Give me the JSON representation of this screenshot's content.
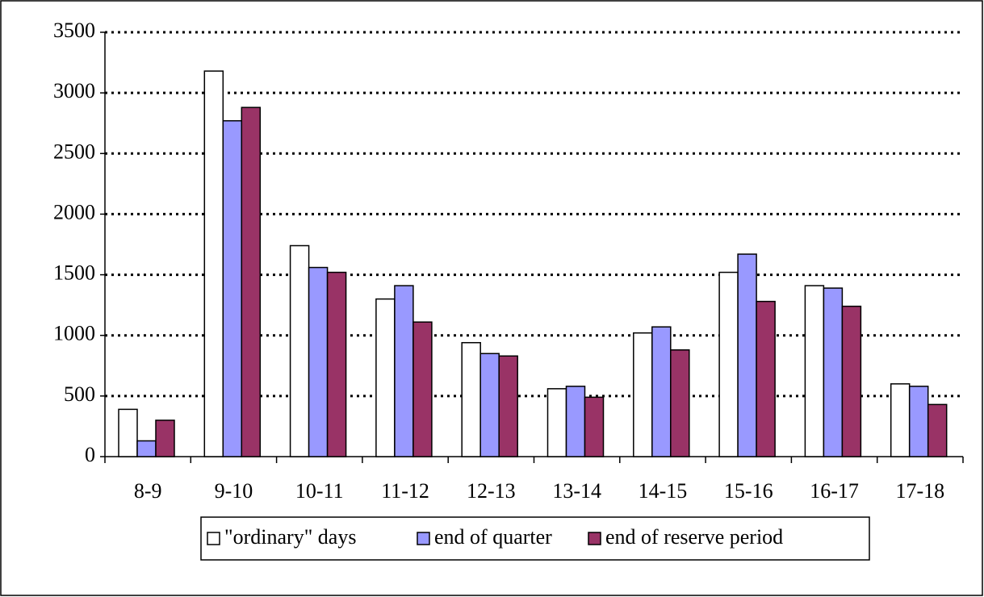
{
  "chart_data": {
    "type": "bar",
    "categories": [
      "8-9",
      "9-10",
      "10-11",
      "11-12",
      "12-13",
      "13-14",
      "14-15",
      "15-16",
      "16-17",
      "17-18"
    ],
    "series": [
      {
        "name": "\"ordinary\" days",
        "color": "#ffffff",
        "values": [
          390,
          3180,
          1740,
          1300,
          940,
          560,
          1020,
          1520,
          1410,
          600
        ]
      },
      {
        "name": "end of quarter",
        "color": "#9999ff",
        "values": [
          130,
          2770,
          1560,
          1410,
          850,
          580,
          1070,
          1670,
          1390,
          580
        ]
      },
      {
        "name": "end of reserve period",
        "color": "#993366",
        "values": [
          300,
          2880,
          1520,
          1110,
          830,
          490,
          880,
          1280,
          1240,
          430
        ]
      }
    ],
    "ylim": [
      0,
      3500
    ],
    "yticks": [
      0,
      500,
      1000,
      1500,
      2000,
      2500,
      3000,
      3500
    ],
    "grid": true,
    "legend": "bottom"
  }
}
